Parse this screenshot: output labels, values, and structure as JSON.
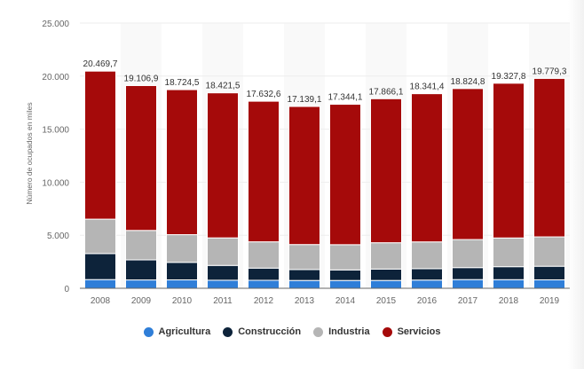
{
  "chart_data": {
    "type": "bar",
    "stacked": true,
    "title": "",
    "xlabel": "",
    "ylabel": "Número de ocupados en miles",
    "ylim": [
      0,
      25000
    ],
    "yticks": [
      0,
      5000,
      10000,
      15000,
      20000,
      25000
    ],
    "ytick_labels": [
      "0",
      "5.000",
      "10.000",
      "15.000",
      "20.000",
      "25.000"
    ],
    "grid": true,
    "legend_position": "bottom",
    "categories": [
      "2008",
      "2009",
      "2010",
      "2011",
      "2012",
      "2013",
      "2014",
      "2015",
      "2016",
      "2017",
      "2018",
      "2019"
    ],
    "series": [
      {
        "name": "Agricultura",
        "color": "#2f7ed8",
        "values": [
          818.9,
          786.1,
          793.0,
          760.2,
          753.2,
          736.6,
          735.8,
          736.8,
          774.5,
          819.6,
          812.6,
          797.3
        ]
      },
      {
        "name": "Construcción",
        "color": "#0d233a",
        "values": [
          2453.4,
          1888.3,
          1650.8,
          1393.0,
          1147.7,
          1029.7,
          993.5,
          1073.7,
          1073.8,
          1128.1,
          1221.8,
          1277.9
        ]
      },
      {
        "name": "Industria",
        "color": "#b5b5b5",
        "values": [
          3242.9,
          2778.5,
          2610.5,
          2597.3,
          2479.0,
          2355.7,
          2380.0,
          2482.7,
          2524.6,
          2646.9,
          2708.7,
          2770.4
        ]
      },
      {
        "name": "Servicios",
        "color": "#a50a0a",
        "values": [
          13954.5,
          13654.0,
          13670.2,
          13671.0,
          13252.7,
          13017.1,
          13234.8,
          13572.9,
          13968.5,
          14230.2,
          14584.7,
          14933.7
        ]
      }
    ],
    "totals": [
      20469.7,
      19106.9,
      18724.5,
      18421.5,
      17632.6,
      17139.1,
      17344.1,
      17866.1,
      18341.4,
      18824.8,
      19327.8,
      19779.3
    ],
    "total_labels": [
      "20.469,7",
      "19.106,9",
      "18.724,5",
      "18.421,5",
      "17.632,6",
      "17.139,1",
      "17.344,1",
      "17.866,1",
      "18.341,4",
      "18.824,8",
      "19.327,8",
      "19.779,3"
    ]
  }
}
